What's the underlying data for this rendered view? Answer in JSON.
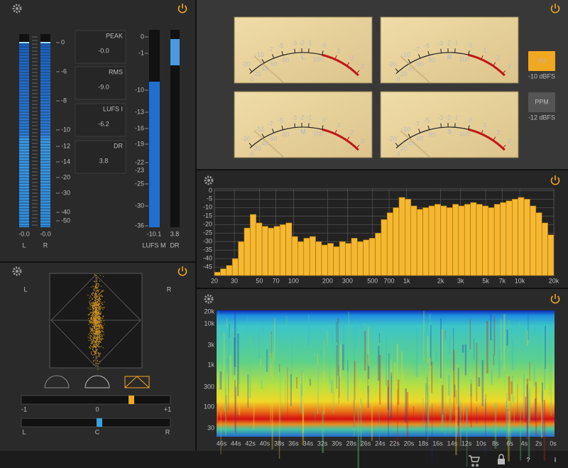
{
  "level_meter": {
    "scale": [
      "0",
      "-6",
      "-8",
      "-10",
      "-12",
      "-14",
      "-20",
      "-30",
      "-40",
      "-50"
    ],
    "readings": [
      "-0.0",
      "-0.0"
    ],
    "channels": [
      "L",
      "R"
    ]
  },
  "readouts": [
    {
      "label": "PEAK",
      "value": "-0.0"
    },
    {
      "label": "RMS",
      "value": "-9.0"
    },
    {
      "label": "LUFS I",
      "value": "-6.2"
    },
    {
      "label": "DR",
      "value": "3.8"
    }
  ],
  "loudness": {
    "scale": [
      "0",
      "-1",
      "-10",
      "-13",
      "-16",
      "-19",
      "-22",
      "-25",
      "-30",
      "-36"
    ],
    "target": "-23",
    "readings": [
      "-10.1",
      "3.8"
    ],
    "labels": [
      "LUFS M",
      "DR"
    ]
  },
  "vu": {
    "outer_scale": [
      "-20",
      "-10",
      "-7",
      "-5",
      "-3",
      "-2",
      "-1",
      "0",
      "1",
      "2",
      "3"
    ],
    "inner_scale": [
      "0",
      "20",
      "40",
      "60",
      "80",
      "100"
    ],
    "meters": [
      "L",
      "R",
      "M",
      "S"
    ],
    "modes": [
      {
        "label": "VU",
        "ref": "-10 dBFS"
      },
      {
        "label": "PPM",
        "ref": "-12 dBFS"
      }
    ]
  },
  "goniometer": {
    "labels": [
      "L",
      "R"
    ]
  },
  "sliders": [
    {
      "labels": [
        "-1",
        "0",
        "+1"
      ]
    },
    {
      "labels": [
        "L",
        "C",
        "R"
      ]
    }
  ],
  "spectrum": {
    "type": "bar",
    "log_x": true,
    "xlim": [
      20,
      20000
    ],
    "ylim": [
      -50,
      1
    ],
    "yticks": [
      0,
      -5,
      -10,
      -15,
      -20,
      -25,
      -30,
      -35,
      -40,
      -45
    ],
    "xticks": [
      20,
      30,
      50,
      70,
      100,
      200,
      300,
      500,
      700,
      {
        "value": 1000,
        "label": "1k"
      },
      {
        "value": 2000,
        "label": "2k"
      },
      {
        "value": 3000,
        "label": "3k"
      },
      {
        "value": 5000,
        "label": "5k"
      },
      {
        "value": 7000,
        "label": "7k"
      },
      {
        "value": 10000,
        "label": "10k"
      },
      {
        "value": 20000,
        "label": "20k"
      }
    ],
    "color": "#f5b830",
    "values": [
      -48,
      -46,
      -44,
      -40,
      -30,
      -22,
      -14,
      -19,
      -21,
      -22,
      -21,
      -20,
      -19,
      -27,
      -30,
      -28,
      -27,
      -30,
      -32,
      -31,
      -33,
      -30,
      -31,
      -28,
      -30,
      -29,
      -28,
      -25,
      -17,
      -13,
      -10,
      -4,
      -5,
      -9,
      -11,
      -10,
      -9,
      -8,
      -9,
      -10,
      -8,
      -9,
      -8,
      -7,
      -8,
      -9,
      -10,
      -8,
      -7,
      -6,
      -5,
      -4,
      -5,
      -9,
      -13,
      -19,
      -26
    ]
  },
  "spectrogram": {
    "yticks": [
      "20k",
      "10k",
      "3k",
      "1k",
      "300",
      "100",
      "30"
    ],
    "xticks": [
      "46s",
      "44s",
      "42s",
      "40s",
      "38s",
      "36s",
      "34s",
      "32s",
      "30s",
      "28s",
      "26s",
      "24s",
      "22s",
      "20s",
      "18s",
      "16s",
      "14s",
      "12s",
      "10s",
      "8s",
      "6s",
      "4s",
      "2s",
      "0s"
    ]
  },
  "toolbar": [
    "?",
    "i"
  ]
}
